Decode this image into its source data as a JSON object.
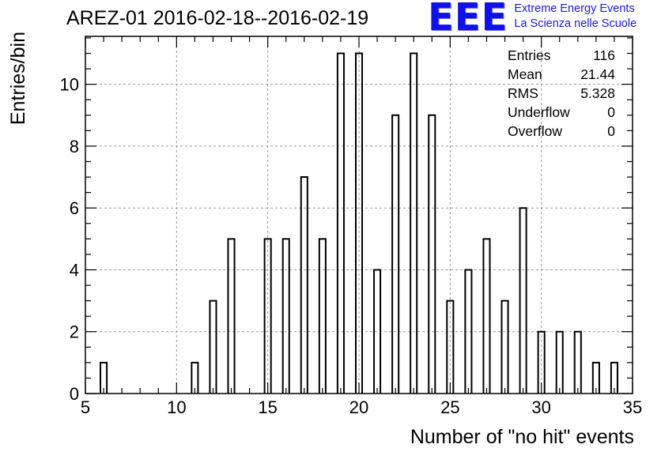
{
  "title": "AREZ-01 2016-02-18--2016-02-19",
  "logo": {
    "mark": "EEE",
    "line1": "Extreme Energy Events",
    "line2": "La Scienza nelle Scuole"
  },
  "stats": [
    {
      "label": "Entries",
      "value": "116"
    },
    {
      "label": "Mean",
      "value": "21.44"
    },
    {
      "label": "RMS",
      "value": "5.328"
    },
    {
      "label": "Underflow",
      "value": "0"
    },
    {
      "label": "Overflow",
      "value": "0"
    }
  ],
  "chart_data": {
    "type": "bar",
    "xlabel": "Number of \"no hit\" events",
    "ylabel": "Entries/bin",
    "xlim": [
      5,
      35
    ],
    "ylim": [
      0,
      11.55
    ],
    "x_ticks": [
      5,
      10,
      15,
      20,
      25,
      30,
      35
    ],
    "y_ticks": [
      0,
      2,
      4,
      6,
      8,
      10
    ],
    "grid": true,
    "line_color": "#000000",
    "bins": [
      {
        "x": 6,
        "value": 1
      },
      {
        "x": 11,
        "value": 1
      },
      {
        "x": 12,
        "value": 3
      },
      {
        "x": 13,
        "value": 5
      },
      {
        "x": 15,
        "value": 5
      },
      {
        "x": 16,
        "value": 5
      },
      {
        "x": 17,
        "value": 7
      },
      {
        "x": 18,
        "value": 5
      },
      {
        "x": 19,
        "value": 11
      },
      {
        "x": 20,
        "value": 11
      },
      {
        "x": 21,
        "value": 4
      },
      {
        "x": 22,
        "value": 9
      },
      {
        "x": 23,
        "value": 11
      },
      {
        "x": 24,
        "value": 9
      },
      {
        "x": 25,
        "value": 3
      },
      {
        "x": 26,
        "value": 4
      },
      {
        "x": 27,
        "value": 5
      },
      {
        "x": 28,
        "value": 3
      },
      {
        "x": 29,
        "value": 6
      },
      {
        "x": 30,
        "value": 2
      },
      {
        "x": 31,
        "value": 2
      },
      {
        "x": 32,
        "value": 2
      },
      {
        "x": 33,
        "value": 1
      },
      {
        "x": 34,
        "value": 1
      }
    ]
  }
}
